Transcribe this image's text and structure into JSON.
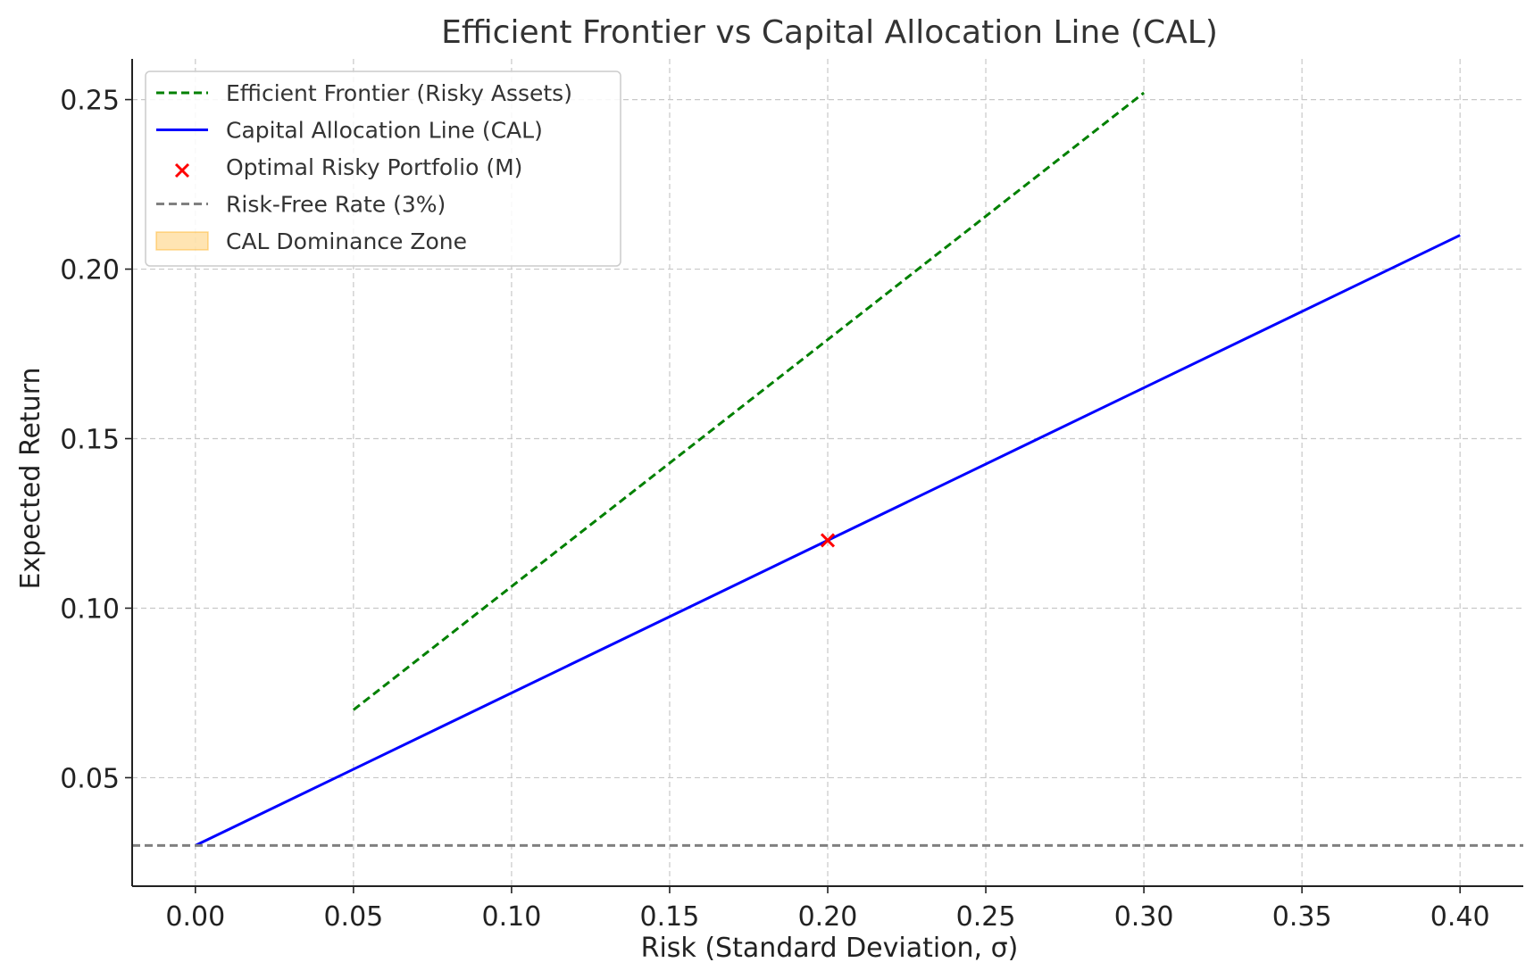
{
  "chart_data": {
    "type": "line",
    "title": "Efficient Frontier vs Capital Allocation Line (CAL)",
    "xlabel": "Risk (Standard Deviation, σ)",
    "ylabel": "Expected Return",
    "xlim": [
      -0.02,
      0.42
    ],
    "ylim": [
      0.018,
      0.262
    ],
    "xticks": [
      0.0,
      0.05,
      0.1,
      0.15,
      0.2,
      0.25,
      0.3,
      0.35,
      0.4
    ],
    "xtick_labels": [
      "0.00",
      "0.05",
      "0.10",
      "0.15",
      "0.20",
      "0.25",
      "0.30",
      "0.35",
      "0.40"
    ],
    "yticks": [
      0.05,
      0.1,
      0.15,
      0.2,
      0.25
    ],
    "ytick_labels": [
      "0.05",
      "0.10",
      "0.15",
      "0.20",
      "0.25"
    ],
    "grid": true,
    "legend_position": "upper-left",
    "series": [
      {
        "name": "Efficient Frontier (Risky Assets)",
        "kind": "line",
        "style": "dashed",
        "color": "#008000",
        "x": [
          0.05,
          0.3
        ],
        "y": [
          0.07,
          0.252
        ]
      },
      {
        "name": "Capital Allocation Line (CAL)",
        "kind": "line",
        "style": "solid",
        "color": "#0000ff",
        "x": [
          0.0,
          0.4
        ],
        "y": [
          0.03,
          0.21
        ]
      },
      {
        "name": "Optimal Risky Portfolio (M)",
        "kind": "marker",
        "marker": "x",
        "color": "#ff0000",
        "x": [
          0.2
        ],
        "y": [
          0.12
        ]
      },
      {
        "name": "Risk-Free Rate (3%)",
        "kind": "hline",
        "style": "dashed",
        "color": "#808080",
        "y": 0.03
      },
      {
        "name": "CAL Dominance Zone",
        "kind": "area",
        "color": "#ffa500",
        "x": [],
        "y": []
      }
    ]
  }
}
